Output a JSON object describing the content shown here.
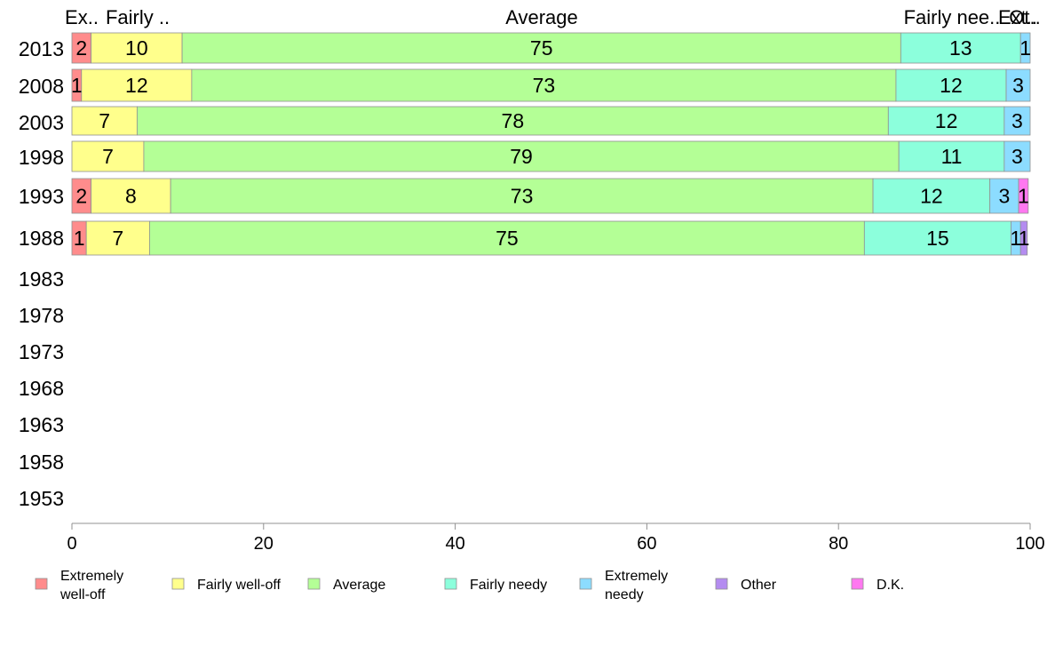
{
  "chart_data": {
    "type": "bar",
    "orientation": "horizontal",
    "stacked": true,
    "categories": [
      "2013",
      "2008",
      "2003",
      "1998",
      "1993",
      "1988",
      "1983",
      "1978",
      "1973",
      "1968",
      "1963",
      "1958",
      "1953"
    ],
    "top_labels": [
      "Ex..",
      "Fairly ..",
      "Average",
      "Fairly nee..",
      "Ext..",
      "Ot.."
    ],
    "series": [
      {
        "name": "Extremely well-off",
        "legend_lines": [
          "Extremely",
          "well-off"
        ],
        "color": "#FF8C8C",
        "values": [
          2,
          1,
          null,
          null,
          2,
          1.5,
          null,
          null,
          null,
          null,
          null,
          null,
          null
        ],
        "labels": [
          "2",
          "1",
          "",
          "",
          "2",
          "1",
          "",
          "",
          "",
          "",
          "",
          "",
          ""
        ]
      },
      {
        "name": "Fairly well-off",
        "legend_lines": [
          "Fairly well-off"
        ],
        "color": "#FFFF8C",
        "values": [
          9.5,
          11.5,
          6.8,
          7.5,
          8.3,
          6.6,
          null,
          null,
          null,
          null,
          null,
          null,
          null
        ],
        "labels": [
          "10",
          "12",
          "7",
          "7",
          "8",
          "7",
          "",
          "",
          "",
          "",
          "",
          "",
          ""
        ]
      },
      {
        "name": "Average",
        "legend_lines": [
          "Average"
        ],
        "color": "#B4FF96",
        "values": [
          75,
          73.5,
          78.4,
          78.8,
          73.3,
          74.6,
          null,
          null,
          null,
          null,
          null,
          null,
          null
        ],
        "labels": [
          "75",
          "73",
          "78",
          "79",
          "73",
          "75",
          "",
          "",
          "",
          "",
          "",
          "",
          ""
        ]
      },
      {
        "name": "Fairly needy",
        "legend_lines": [
          "Fairly needy"
        ],
        "color": "#8CFFDC",
        "values": [
          12.5,
          11.5,
          12.1,
          11,
          12.2,
          15.3,
          null,
          null,
          null,
          null,
          null,
          null,
          null
        ],
        "labels": [
          "13",
          "12",
          "12",
          "11",
          "12",
          "15",
          "",
          "",
          "",
          "",
          "",
          "",
          ""
        ]
      },
      {
        "name": "Extremely needy",
        "legend_lines": [
          "Extremely",
          "needy"
        ],
        "color": "#8CDCFF",
        "values": [
          1,
          2.5,
          2.7,
          2.7,
          3,
          1,
          null,
          null,
          null,
          null,
          null,
          null,
          null
        ],
        "labels": [
          "1",
          "3",
          "3",
          "3",
          "3",
          "1",
          "",
          "",
          "",
          "",
          "",
          "",
          ""
        ]
      },
      {
        "name": "Other",
        "legend_lines": [
          "Other"
        ],
        "color": "#B48CF0",
        "values": [
          null,
          null,
          null,
          null,
          null,
          0.7,
          null,
          null,
          null,
          null,
          null,
          null,
          null
        ],
        "labels": [
          "",
          "",
          "",
          "",
          "",
          "1",
          "",
          "",
          "",
          "",
          "",
          "",
          ""
        ]
      },
      {
        "name": "D.K.",
        "legend_lines": [
          "D.K."
        ],
        "color": "#FF78F0",
        "values": [
          null,
          null,
          null,
          null,
          1,
          null,
          null,
          null,
          null,
          null,
          null,
          null,
          null
        ],
        "labels": [
          "",
          "",
          "",
          "",
          "1",
          "",
          "",
          "",
          "",
          "",
          "",
          "",
          ""
        ]
      }
    ],
    "xlim": [
      0,
      100
    ],
    "xticks": [
      "0",
      "20",
      "40",
      "60",
      "80",
      "100"
    ],
    "xlabel": "",
    "ylabel": "",
    "title": "",
    "grid": false,
    "legend_position": "bottom"
  }
}
